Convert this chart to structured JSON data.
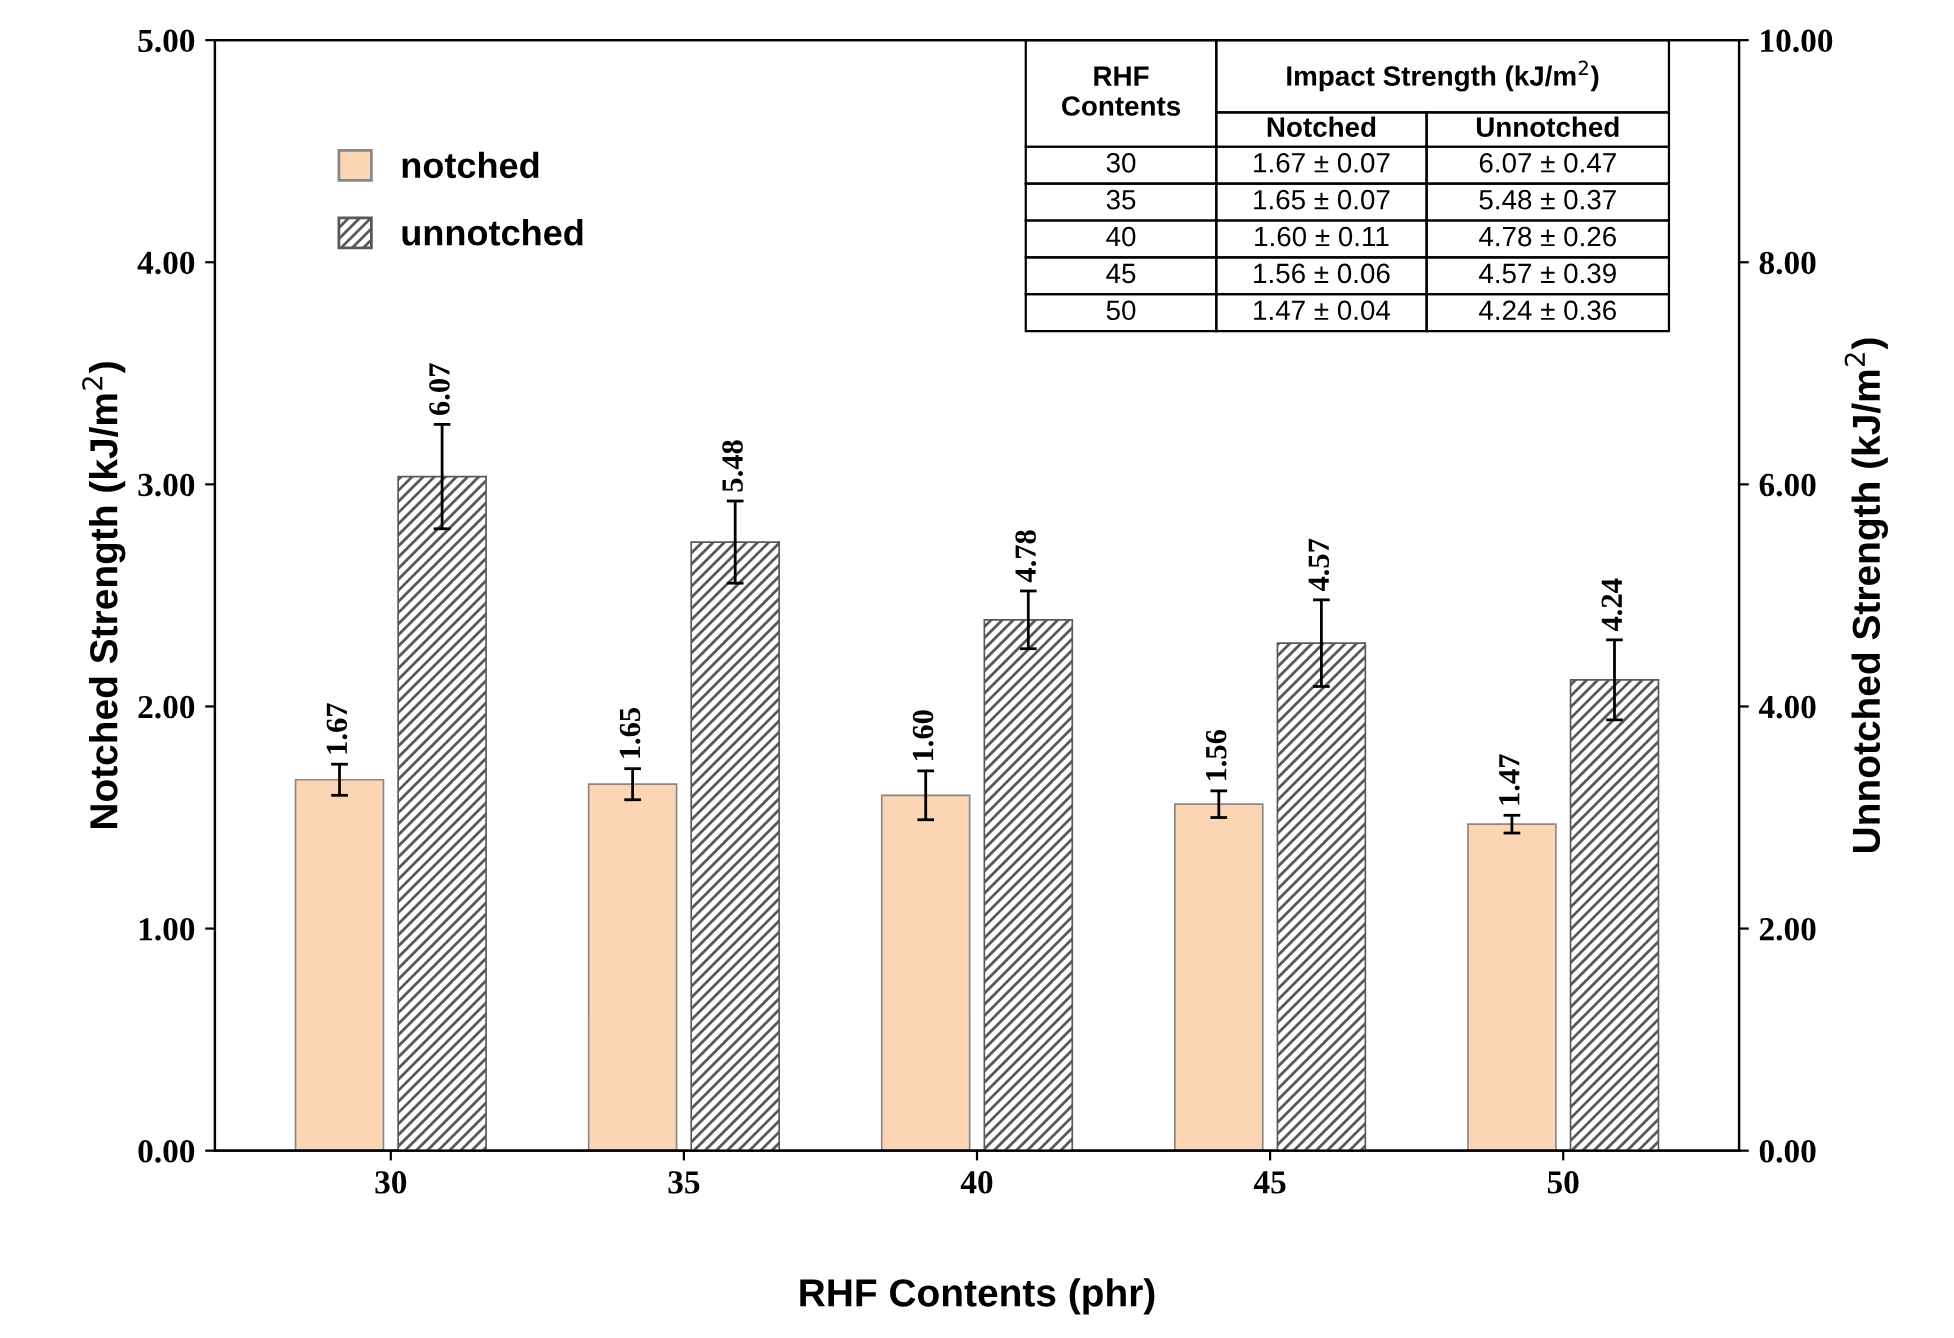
{
  "chart_data": {
    "type": "bar",
    "xlabel": "RHF Contents (phr)",
    "ylabel": "Notched Strength (kJ/m$^{2}$)",
    "y2label": "Unnotched Strength (kJ/m$^{2}$)",
    "categories": [
      "30",
      "35",
      "40",
      "45",
      "50"
    ],
    "series": [
      {
        "name": "notched",
        "color": "#fcd5b4",
        "values": [
          1.67,
          1.65,
          1.6,
          1.56,
          1.47
        ],
        "errors": [
          0.07,
          0.07,
          0.11,
          0.06,
          0.04
        ],
        "value_labels": [
          "1.67",
          "1.65",
          "1.60",
          "1.56",
          "1.47"
        ]
      },
      {
        "name": "unnotched",
        "color": "#595959",
        "axis": "y2",
        "values": [
          6.07,
          5.48,
          4.78,
          4.57,
          4.24
        ],
        "errors": [
          0.47,
          0.37,
          0.26,
          0.39,
          0.36
        ],
        "value_labels": [
          "6.07",
          "5.48",
          "4.78",
          "4.57",
          "4.24"
        ]
      }
    ],
    "ylim": [
      0,
      5
    ],
    "yticks": [
      {
        "value": 0,
        "label": "0.00"
      },
      {
        "value": 1,
        "label": "1.00"
      },
      {
        "value": 2,
        "label": "2.00"
      },
      {
        "value": 3,
        "label": "3.00"
      },
      {
        "value": 4,
        "label": "4.00"
      },
      {
        "value": 5,
        "label": "5.00"
      }
    ],
    "y2lim": [
      0,
      10
    ],
    "y2ticks": [
      {
        "value": 0,
        "label": "0.00"
      },
      {
        "value": 2,
        "label": "2.00"
      },
      {
        "value": 4,
        "label": "4.00"
      },
      {
        "value": 6,
        "label": "6.00"
      },
      {
        "value": 8,
        "label": "8.00"
      },
      {
        "value": 10,
        "label": "10.00"
      }
    ],
    "grid": false,
    "legend": "top left",
    "annotations": [
      "RHF Contents",
      "Impact Strength (kJ/m$^{2}$)",
      "Notched",
      "Unnotched",
      "30",
      "1.67 ± 0.07",
      "6.07 ± 0.47",
      "35",
      "1.65 ± 0.07",
      "5.48 ± 0.37",
      "40",
      "1.60 ± 0.11",
      "4.78 ± 0.26",
      "45",
      "1.56 ± 0.06",
      "4.57 ± 0.39",
      "50",
      "1.47 ± 0.04",
      "4.24 ± 0.36"
    ]
  }
}
